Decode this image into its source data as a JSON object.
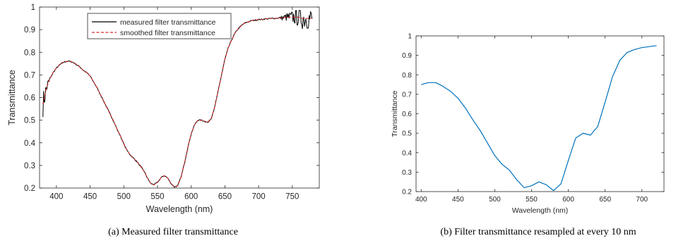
{
  "chart_data": [
    {
      "type": "line",
      "caption": "(a) Measured filter transmittance",
      "title": "",
      "xlabel": "Wavelength (nm)",
      "ylabel": "Transmittance",
      "xlim": [
        375,
        790
      ],
      "ylim": [
        0.2,
        1.0
      ],
      "xticks": [
        400,
        450,
        500,
        550,
        600,
        650,
        700,
        750
      ],
      "yticks": [
        0.2,
        0.3,
        0.4,
        0.5,
        0.6,
        0.7,
        0.8,
        0.9,
        1
      ],
      "yticklabels": [
        "0.2",
        "0.3",
        "0.4",
        "0.5",
        "0.6",
        "0.7",
        "0.8",
        "0.9",
        "1"
      ],
      "grid": false,
      "legend_position": "top",
      "series": [
        {
          "name": "measured filter transmittance",
          "color": "#000000",
          "style": "solid",
          "noisy": true,
          "x": [
            380,
            385,
            390,
            395,
            400,
            405,
            410,
            415,
            420,
            425,
            430,
            435,
            440,
            445,
            450,
            455,
            460,
            465,
            470,
            475,
            480,
            485,
            490,
            495,
            500,
            505,
            510,
            515,
            520,
            525,
            530,
            535,
            540,
            545,
            550,
            555,
            560,
            565,
            570,
            575,
            580,
            585,
            590,
            595,
            600,
            605,
            610,
            615,
            620,
            625,
            630,
            635,
            640,
            645,
            650,
            655,
            660,
            665,
            670,
            675,
            680,
            685,
            690,
            695,
            700,
            705,
            710,
            715,
            720,
            725,
            730,
            735,
            740,
            745,
            750,
            755,
            760,
            765,
            770,
            775,
            780
          ],
          "y": [
            0.57,
            0.64,
            0.68,
            0.71,
            0.73,
            0.745,
            0.755,
            0.76,
            0.76,
            0.755,
            0.745,
            0.735,
            0.72,
            0.71,
            0.695,
            0.67,
            0.645,
            0.615,
            0.585,
            0.555,
            0.525,
            0.495,
            0.46,
            0.43,
            0.395,
            0.365,
            0.345,
            0.33,
            0.315,
            0.295,
            0.275,
            0.245,
            0.22,
            0.215,
            0.225,
            0.245,
            0.255,
            0.245,
            0.22,
            0.205,
            0.21,
            0.25,
            0.31,
            0.38,
            0.44,
            0.48,
            0.5,
            0.5,
            0.495,
            0.49,
            0.51,
            0.56,
            0.63,
            0.7,
            0.77,
            0.82,
            0.855,
            0.885,
            0.905,
            0.92,
            0.93,
            0.935,
            0.94,
            0.942,
            0.945,
            0.945,
            0.948,
            0.948,
            0.95,
            0.95,
            0.952,
            0.952,
            0.955,
            0.955,
            0.955,
            0.955,
            0.955,
            0.95,
            0.95,
            0.95,
            0.95
          ]
        },
        {
          "name": "smoothed filter transmittance",
          "color": "#d62728",
          "style": "dashed",
          "x": [
            380,
            385,
            390,
            395,
            400,
            405,
            410,
            415,
            420,
            425,
            430,
            435,
            440,
            445,
            450,
            455,
            460,
            465,
            470,
            475,
            480,
            485,
            490,
            495,
            500,
            505,
            510,
            515,
            520,
            525,
            530,
            535,
            540,
            545,
            550,
            555,
            560,
            565,
            570,
            575,
            580,
            585,
            590,
            595,
            600,
            605,
            610,
            615,
            620,
            625,
            630,
            635,
            640,
            645,
            650,
            655,
            660,
            665,
            670,
            675,
            680,
            685,
            690,
            695,
            700,
            705,
            710,
            715,
            720,
            725,
            730,
            735,
            740,
            745,
            750,
            755,
            760,
            765,
            770,
            775,
            780
          ],
          "y": [
            0.57,
            0.64,
            0.68,
            0.71,
            0.73,
            0.745,
            0.755,
            0.76,
            0.76,
            0.755,
            0.745,
            0.735,
            0.72,
            0.71,
            0.695,
            0.67,
            0.645,
            0.615,
            0.585,
            0.555,
            0.525,
            0.495,
            0.46,
            0.43,
            0.395,
            0.365,
            0.345,
            0.33,
            0.315,
            0.295,
            0.275,
            0.245,
            0.22,
            0.215,
            0.225,
            0.245,
            0.255,
            0.245,
            0.22,
            0.205,
            0.21,
            0.25,
            0.31,
            0.38,
            0.44,
            0.48,
            0.5,
            0.5,
            0.495,
            0.49,
            0.51,
            0.56,
            0.63,
            0.7,
            0.77,
            0.82,
            0.855,
            0.885,
            0.905,
            0.92,
            0.93,
            0.935,
            0.94,
            0.942,
            0.945,
            0.945,
            0.948,
            0.948,
            0.95,
            0.95,
            0.952,
            0.952,
            0.955,
            0.955,
            0.955,
            0.955,
            0.955,
            0.95,
            0.95,
            0.95,
            0.95
          ]
        }
      ]
    },
    {
      "type": "line",
      "caption": "(b) Filter transmittance resampled at every 10 nm",
      "title": "",
      "xlabel": "Wavelength (nm)",
      "ylabel": "Transmittance",
      "xlim": [
        393,
        730
      ],
      "ylim": [
        0.2,
        1.0
      ],
      "xticks": [
        400,
        450,
        500,
        550,
        600,
        650,
        700
      ],
      "yticks": [
        0.2,
        0.3,
        0.4,
        0.5,
        0.6,
        0.7,
        0.8,
        0.9,
        1
      ],
      "yticklabels": [
        "0.2",
        "0.3",
        "0.4",
        "0.5",
        "0.6",
        "0.7",
        "0.8",
        "0.9",
        "1"
      ],
      "grid": false,
      "series": [
        {
          "name": "",
          "color": "#0072bd",
          "style": "solid",
          "x": [
            400,
            410,
            420,
            430,
            440,
            450,
            460,
            470,
            480,
            490,
            500,
            510,
            520,
            530,
            540,
            550,
            560,
            570,
            580,
            590,
            600,
            610,
            620,
            630,
            640,
            650,
            660,
            670,
            680,
            690,
            700,
            710,
            720
          ],
          "y": [
            0.75,
            0.76,
            0.76,
            0.74,
            0.715,
            0.68,
            0.63,
            0.57,
            0.515,
            0.45,
            0.385,
            0.34,
            0.31,
            0.26,
            0.22,
            0.23,
            0.25,
            0.235,
            0.205,
            0.24,
            0.36,
            0.475,
            0.5,
            0.49,
            0.535,
            0.66,
            0.79,
            0.875,
            0.915,
            0.93,
            0.94,
            0.945,
            0.95
          ]
        }
      ]
    }
  ]
}
